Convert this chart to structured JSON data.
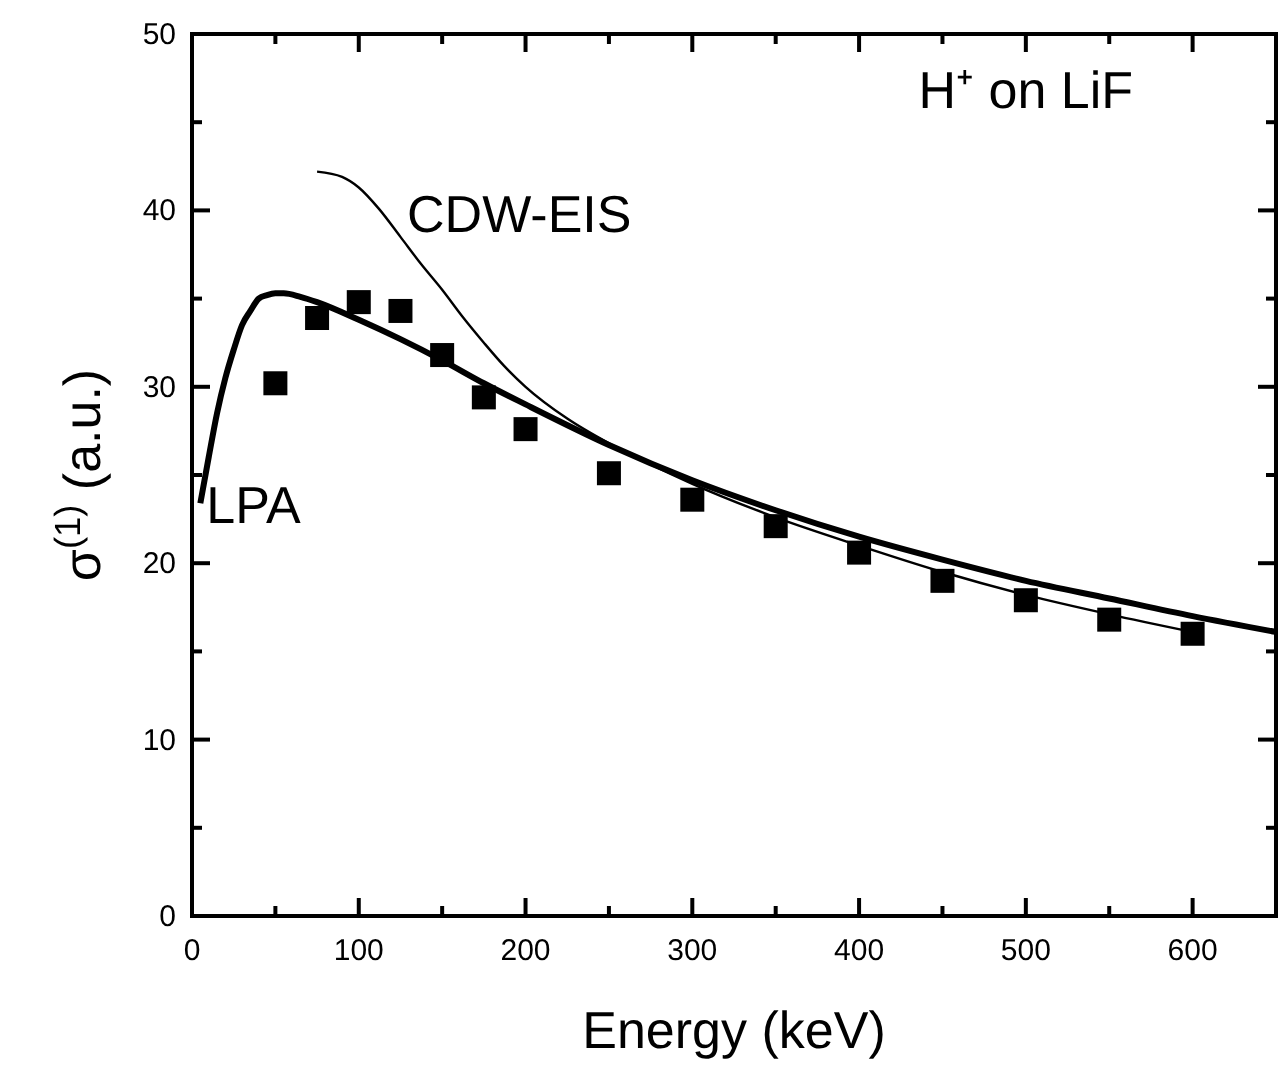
{
  "chart_data": {
    "type": "line",
    "xlabel": "Energy (keV)",
    "ylabel": "σ$^{(1)}$ (a.u.)",
    "annotations": [
      "H⁺ on LiF"
    ],
    "xlim": [
      0,
      650
    ],
    "xticks": [
      0,
      100,
      200,
      300,
      400,
      500,
      600
    ],
    "ylim": [
      0,
      50
    ],
    "yticks": [
      0,
      10,
      20,
      30,
      40,
      50
    ],
    "series": [
      {
        "type": "scatter",
        "color": "#000000",
        "marker": "square",
        "x": [
          50,
          75,
          100,
          125,
          150,
          175,
          200,
          250,
          300,
          350,
          400,
          450,
          500,
          550,
          600
        ],
        "values": [
          30.2,
          33.9,
          34.8,
          34.3,
          31.8,
          29.4,
          27.6,
          25.1,
          23.6,
          22.1,
          20.6,
          19.0,
          17.9,
          16.8,
          16.0
        ]
      },
      {
        "name": "CDW-EIS",
        "color": "#000000",
        "marker": "none",
        "x": [
          75,
          90,
          100,
          112,
          125,
          137,
          150,
          162,
          175,
          187,
          200,
          225,
          250,
          275,
          300,
          350,
          400,
          450,
          500,
          550,
          600
        ],
        "values": [
          42.2,
          41.9,
          41.3,
          40.1,
          38.5,
          37.0,
          35.5,
          34.0,
          32.5,
          31.2,
          30.0,
          28.2,
          26.8,
          25.6,
          24.5,
          22.6,
          21.0,
          19.5,
          18.2,
          17.1,
          16.1
        ]
      },
      {
        "name": "LPA",
        "color": "#000000",
        "marker": "none",
        "x": [
          5,
          10,
          15,
          20,
          25,
          30,
          35,
          40,
          45,
          50,
          55,
          65,
          75,
          100,
          125,
          150,
          175,
          200,
          250,
          300,
          350,
          400,
          450,
          500,
          550,
          600,
          650
        ],
        "values": [
          23.4,
          26.0,
          28.5,
          30.5,
          32.1,
          33.5,
          34.3,
          35.0,
          35.2,
          35.3,
          35.3,
          35.1,
          34.8,
          33.8,
          32.7,
          31.5,
          30.2,
          29.0,
          26.7,
          24.7,
          23.0,
          21.5,
          20.2,
          19.0,
          18.0,
          17.0,
          16.1
        ]
      }
    ]
  }
}
